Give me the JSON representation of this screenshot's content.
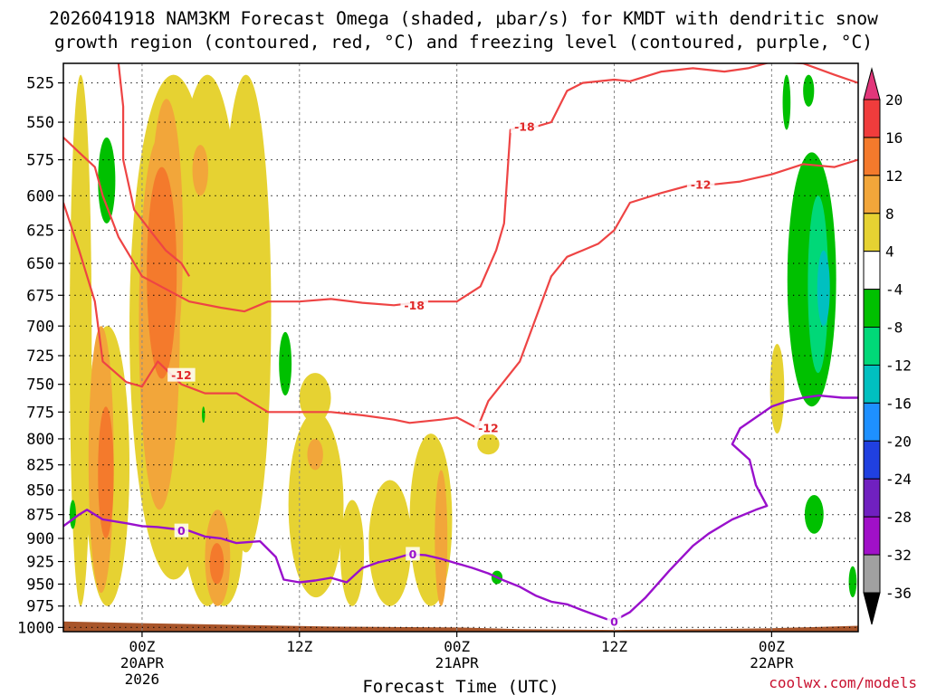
{
  "chart_data": {
    "type": "time-height cross section",
    "title_line1": "2026041918 NAM3KM Forecast Omega (shaded, μbar/s) for KMDT with dendritic snow",
    "title_line2": "growth region (contoured, red, °C) and freezing level (contoured, purple, °C)",
    "xlabel": "Forecast Time (UTC)",
    "credit": "coolwx.com/models",
    "xlim_hours": [
      -5,
      45.5
    ],
    "ylim_mb": [
      1005,
      513
    ],
    "y_ticks": [
      525,
      550,
      575,
      600,
      625,
      650,
      675,
      700,
      725,
      750,
      775,
      800,
      825,
      850,
      875,
      900,
      925,
      950,
      975,
      1000
    ],
    "x_ticks": [
      {
        "hour": 0,
        "line1": "00Z",
        "line2": "20APR",
        "line3": "2026"
      },
      {
        "hour": 10,
        "line1": "12Z",
        "line2": "",
        "line3": ""
      },
      {
        "hour": 20,
        "line1": "00Z",
        "line2": "21APR",
        "line3": ""
      },
      {
        "hour": 30,
        "line1": "12Z",
        "line2": "",
        "line3": ""
      },
      {
        "hour": 40,
        "line1": "00Z",
        "line2": "22APR",
        "line3": ""
      }
    ],
    "colorbar": {
      "labels": [
        "20",
        "16",
        "12",
        "8",
        "4",
        "-4",
        "-8",
        "-12",
        "-16",
        "-20",
        "-24",
        "-28",
        "-32",
        "-36"
      ],
      "colors": [
        "#e2367a",
        "#f03c3c",
        "#f47a2c",
        "#f2a63a",
        "#e6d232",
        "#ffffff",
        "#00c000",
        "#00d878",
        "#00c0c0",
        "#1e90ff",
        "#2040e0",
        "#7020c0",
        "#a010c8",
        "#a0a0a0",
        "#000000"
      ]
    },
    "omega_regions": [
      {
        "level": 4,
        "color": "#e6d232",
        "hours": [
          -4.6,
          -3.2
        ],
        "p": [
          520,
          975
        ]
      },
      {
        "level": 4,
        "color": "#e6d232",
        "hours": [
          -3.6,
          -0.8
        ],
        "p": [
          700,
          975
        ]
      },
      {
        "level": 4,
        "color": "#e6d232",
        "hours": [
          -0.8,
          4.8
        ],
        "p": [
          520,
          945
        ]
      },
      {
        "level": 4,
        "color": "#e6d232",
        "hours": [
          1.8,
          6.5
        ],
        "p": [
          520,
          975
        ]
      },
      {
        "level": 4,
        "color": "#e6d232",
        "hours": [
          4.0,
          6.4
        ],
        "p": [
          835,
          975
        ]
      },
      {
        "level": 4,
        "color": "#e6d232",
        "hours": [
          5.0,
          8.2
        ],
        "p": [
          520,
          915
        ]
      },
      {
        "level": 4,
        "color": "#e6d232",
        "hours": [
          9.3,
          12.8
        ],
        "p": [
          775,
          965
        ]
      },
      {
        "level": 4,
        "color": "#e6d232",
        "hours": [
          10.0,
          12.0
        ],
        "p": [
          740,
          785
        ]
      },
      {
        "level": 4,
        "color": "#e6d232",
        "hours": [
          12.6,
          14.1
        ],
        "p": [
          860,
          975
        ]
      },
      {
        "level": 4,
        "color": "#e6d232",
        "hours": [
          14.4,
          17.1
        ],
        "p": [
          840,
          975
        ]
      },
      {
        "level": 4,
        "color": "#e6d232",
        "hours": [
          17.0,
          19.7
        ],
        "p": [
          795,
          975
        ]
      },
      {
        "level": 4,
        "color": "#e6d232",
        "hours": [
          21.3,
          22.7
        ],
        "p": [
          795,
          815
        ]
      },
      {
        "level": 4,
        "color": "#e6d232",
        "hours": [
          39.9,
          40.8
        ],
        "p": [
          715,
          795
        ]
      },
      {
        "level": 8,
        "color": "#f2a63a",
        "hours": [
          -3.4,
          -1.8
        ],
        "p": [
          700,
          960
        ]
      },
      {
        "level": 8,
        "color": "#f2a63a",
        "hours": [
          -0.2,
          2.4
        ],
        "p": [
          560,
          870
        ]
      },
      {
        "level": 8,
        "color": "#f2a63a",
        "hours": [
          0.5,
          2.6
        ],
        "p": [
          535,
          750
        ]
      },
      {
        "level": 8,
        "color": "#f2a63a",
        "hours": [
          3.2,
          4.2
        ],
        "p": [
          565,
          600
        ]
      },
      {
        "level": 8,
        "color": "#f2a63a",
        "hours": [
          4.0,
          5.6
        ],
        "p": [
          870,
          975
        ]
      },
      {
        "level": 8,
        "color": "#f2a63a",
        "hours": [
          18.6,
          19.4
        ],
        "p": [
          830,
          975
        ]
      },
      {
        "level": 8,
        "color": "#f2a63a",
        "hours": [
          10.5,
          11.5
        ],
        "p": [
          800,
          830
        ]
      },
      {
        "level": 12,
        "color": "#f47a2c",
        "hours": [
          -2.8,
          -1.8
        ],
        "p": [
          770,
          900
        ]
      },
      {
        "level": 12,
        "color": "#f47a2c",
        "hours": [
          0.3,
          2.2
        ],
        "p": [
          580,
          745
        ]
      },
      {
        "level": 12,
        "color": "#f47a2c",
        "hours": [
          4.3,
          5.2
        ],
        "p": [
          905,
          950
        ]
      },
      {
        "level": -4,
        "color": "#00c000",
        "hours": [
          -2.8,
          -1.7
        ],
        "p": [
          560,
          620
        ]
      },
      {
        "level": -4,
        "color": "#00c000",
        "hours": [
          -4.6,
          -4.2
        ],
        "p": [
          860,
          890
        ]
      },
      {
        "level": -4,
        "color": "#00c000",
        "hours": [
          8.7,
          9.5
        ],
        "p": [
          705,
          760
        ]
      },
      {
        "level": -4,
        "color": "#00c000",
        "hours": [
          3.8,
          4.0
        ],
        "p": [
          770,
          785
        ]
      },
      {
        "level": -4,
        "color": "#00c000",
        "hours": [
          22.2,
          22.9
        ],
        "p": [
          935,
          950
        ]
      },
      {
        "level": -4,
        "color": "#00c000",
        "hours": [
          40.7,
          41.2
        ],
        "p": [
          520,
          555
        ]
      },
      {
        "level": -4,
        "color": "#00c000",
        "hours": [
          42.0,
          42.7
        ],
        "p": [
          520,
          540
        ]
      },
      {
        "level": -4,
        "color": "#00c000",
        "hours": [
          41.0,
          44.1
        ],
        "p": [
          570,
          770
        ]
      },
      {
        "level": -4,
        "color": "#00c000",
        "hours": [
          42.1,
          43.3
        ],
        "p": [
          855,
          895
        ]
      },
      {
        "level": -4,
        "color": "#00c000",
        "hours": [
          44.9,
          45.4
        ],
        "p": [
          930,
          965
        ]
      },
      {
        "level": -8,
        "color": "#00d878",
        "hours": [
          42.3,
          43.6
        ],
        "p": [
          600,
          740
        ]
      },
      {
        "level": -12,
        "color": "#00c0c0",
        "hours": [
          42.9,
          43.7
        ],
        "p": [
          640,
          700
        ]
      }
    ],
    "dgz_isotherms": [
      {
        "value_C": -12,
        "label": "-12",
        "label_at": [
          2.5,
          742
        ],
        "points": [
          [
            -5,
            605
          ],
          [
            -4.0,
            640
          ],
          [
            -3.0,
            680
          ],
          [
            -2.5,
            730
          ],
          [
            -1.0,
            748
          ],
          [
            0.0,
            752
          ],
          [
            1.0,
            730
          ],
          [
            2.5,
            750
          ],
          [
            4.0,
            758
          ],
          [
            6.0,
            758
          ],
          [
            8.0,
            775
          ],
          [
            10.0,
            775
          ],
          [
            12.0,
            775
          ],
          [
            14.0,
            778
          ],
          [
            16.0,
            782
          ],
          [
            17.0,
            785
          ],
          [
            19.0,
            782
          ],
          [
            20.0,
            780
          ],
          [
            21.3,
            790
          ],
          [
            22.0,
            765
          ],
          [
            24.0,
            730
          ],
          [
            26.0,
            660
          ],
          [
            27.0,
            645
          ],
          [
            28.0,
            640
          ],
          [
            29.0,
            635
          ],
          [
            30.0,
            625
          ],
          [
            31.0,
            605
          ],
          [
            33.0,
            598
          ],
          [
            35.0,
            592
          ],
          [
            36.3,
            592
          ],
          [
            38.0,
            590
          ],
          [
            40.0,
            585
          ],
          [
            42.0,
            578
          ],
          [
            44.0,
            580
          ],
          [
            45.5,
            575
          ]
        ]
      },
      {
        "value_C": -18,
        "label": "-18",
        "label_at": [
          17.3,
          683
        ],
        "points": [
          [
            -5,
            560
          ],
          [
            -4.0,
            570
          ],
          [
            -3.0,
            580
          ],
          [
            -2.5,
            600
          ],
          [
            -1.5,
            630
          ],
          [
            0.0,
            660
          ],
          [
            1.5,
            670
          ],
          [
            3.0,
            680
          ],
          [
            5.0,
            685
          ],
          [
            6.5,
            688
          ],
          [
            8.0,
            680
          ],
          [
            10.0,
            680
          ],
          [
            12.0,
            678
          ],
          [
            14.0,
            681
          ],
          [
            16.0,
            683
          ],
          [
            18.0,
            680
          ],
          [
            20.0,
            680
          ],
          [
            21.5,
            668
          ],
          [
            22.5,
            640
          ],
          [
            23.0,
            620
          ],
          [
            23.4,
            555
          ],
          [
            24.3,
            552
          ],
          [
            25.0,
            553
          ],
          [
            26.0,
            550
          ],
          [
            27.0,
            530
          ],
          [
            28.0,
            525
          ],
          [
            30.0,
            523
          ],
          [
            31.0,
            524
          ],
          [
            33.0,
            518
          ],
          [
            35.0,
            516
          ],
          [
            37.0,
            518
          ],
          [
            38.5,
            516
          ],
          [
            40.0,
            512
          ],
          [
            42.0,
            513
          ],
          [
            44.0,
            520
          ],
          [
            45.5,
            525
          ]
        ]
      },
      {
        "value_C": -18,
        "label": "",
        "label_at": [
          0,
          0
        ],
        "points": [
          [
            -1.5,
            513
          ],
          [
            -1.2,
            540
          ],
          [
            -1.2,
            575
          ],
          [
            -0.5,
            610
          ],
          [
            0.5,
            625
          ],
          [
            1.5,
            640
          ],
          [
            2.5,
            650
          ],
          [
            3.0,
            660
          ]
        ]
      }
    ],
    "freezing_level": {
      "value_C": 0,
      "label": "0",
      "label_positions": [
        [
          2.5,
          892
        ],
        [
          17.2,
          917
        ],
        [
          30.0,
          993
        ]
      ],
      "points": [
        [
          -5,
          887
        ],
        [
          -4.0,
          875
        ],
        [
          -3.5,
          870
        ],
        [
          -2.5,
          880
        ],
        [
          -1.0,
          884
        ],
        [
          0.0,
          887
        ],
        [
          1.0,
          888
        ],
        [
          2.0,
          890
        ],
        [
          3.0,
          892
        ],
        [
          4.0,
          898
        ],
        [
          5.0,
          900
        ],
        [
          6.0,
          905
        ],
        [
          7.5,
          903
        ],
        [
          8.5,
          920
        ],
        [
          9.0,
          945
        ],
        [
          10.0,
          948
        ],
        [
          11.0,
          946
        ],
        [
          12.0,
          943
        ],
        [
          13.0,
          948
        ],
        [
          14.0,
          932
        ],
        [
          15.0,
          926
        ],
        [
          16.0,
          922
        ],
        [
          17.0,
          917
        ],
        [
          18.0,
          918
        ],
        [
          19.0,
          922
        ],
        [
          20.0,
          927
        ],
        [
          21.0,
          932
        ],
        [
          22.0,
          938
        ],
        [
          23.0,
          946
        ],
        [
          24.0,
          953
        ],
        [
          25.0,
          963
        ],
        [
          26.0,
          970
        ],
        [
          27.0,
          973
        ],
        [
          28.0,
          980
        ],
        [
          29.5,
          990
        ],
        [
          30.0,
          992
        ],
        [
          31.0,
          982
        ],
        [
          32.0,
          965
        ],
        [
          33.5,
          935
        ],
        [
          35.0,
          908
        ],
        [
          36.0,
          895
        ],
        [
          37.5,
          880
        ],
        [
          39.0,
          870
        ],
        [
          39.7,
          866
        ],
        [
          39.0,
          845
        ],
        [
          38.6,
          820
        ],
        [
          37.5,
          805
        ],
        [
          38.0,
          790
        ],
        [
          39.0,
          780
        ],
        [
          40.0,
          770
        ],
        [
          41.0,
          765
        ],
        [
          42.0,
          762
        ],
        [
          43.0,
          760
        ],
        [
          44.5,
          762
        ],
        [
          45.5,
          762
        ]
      ]
    },
    "terrain": {
      "color": "#a8552a",
      "profile_mb": [
        [
          -5,
          993
        ],
        [
          0,
          995
        ],
        [
          6,
          997
        ],
        [
          12,
          999
        ],
        [
          20,
          1000
        ],
        [
          24,
          1002
        ],
        [
          30,
          1003
        ],
        [
          36,
          1002
        ],
        [
          40,
          1001
        ],
        [
          45.5,
          998
        ]
      ]
    }
  }
}
